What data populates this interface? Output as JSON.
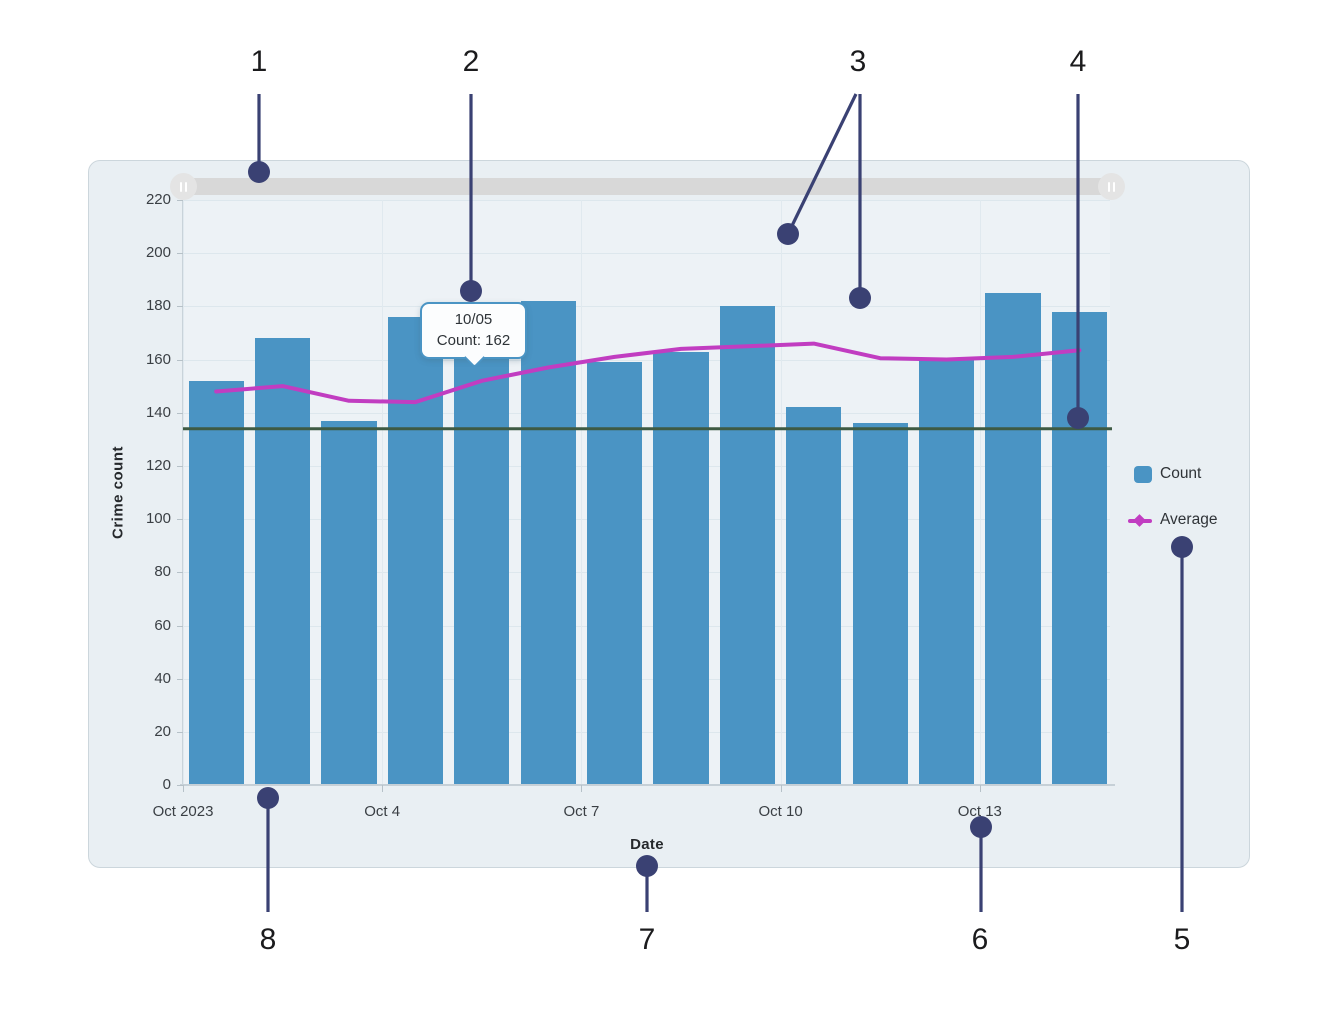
{
  "chart_data": {
    "type": "bar",
    "title": "",
    "xlabel": "Date",
    "ylabel": "Crime count",
    "ylim": [
      0,
      220
    ],
    "y_ticks": [
      0,
      20,
      40,
      60,
      80,
      100,
      120,
      140,
      160,
      180,
      200,
      220
    ],
    "x_tick_labels": [
      "Oct 2023",
      "Oct 4",
      "Oct 7",
      "Oct 10",
      "Oct 13"
    ],
    "x_tick_days": [
      1,
      4,
      7,
      10,
      13
    ],
    "categories": [
      "Oct 1",
      "Oct 2",
      "Oct 3",
      "Oct 4",
      "Oct 5",
      "Oct 6",
      "Oct 7",
      "Oct 8",
      "Oct 9",
      "Oct 10",
      "Oct 11",
      "Oct 12",
      "Oct 13",
      "Oct 14"
    ],
    "grid": true,
    "legend_position": "right",
    "series": [
      {
        "name": "Count",
        "type": "bar",
        "color": "#4a94c4",
        "values": [
          152,
          168,
          137,
          176,
          162,
          182,
          159,
          163,
          180,
          142,
          136,
          160,
          185,
          178
        ]
      },
      {
        "name": "Average",
        "type": "line",
        "color": "#c13dc1",
        "values": [
          148,
          150,
          144.5,
          144,
          152,
          157,
          161,
          164,
          165,
          166,
          160.5,
          160,
          161,
          163.5
        ]
      }
    ],
    "reference_line": {
      "value": 134,
      "color": "#3e5a43"
    }
  },
  "tooltip": {
    "line1": "10/05",
    "line2": "Count: 162"
  },
  "legend": {
    "count_label": "Count",
    "average_label": "Average"
  },
  "callouts": {
    "labels": [
      "1",
      "2",
      "3",
      "4",
      "5",
      "6",
      "7",
      "8"
    ],
    "color": "#3a4173"
  }
}
